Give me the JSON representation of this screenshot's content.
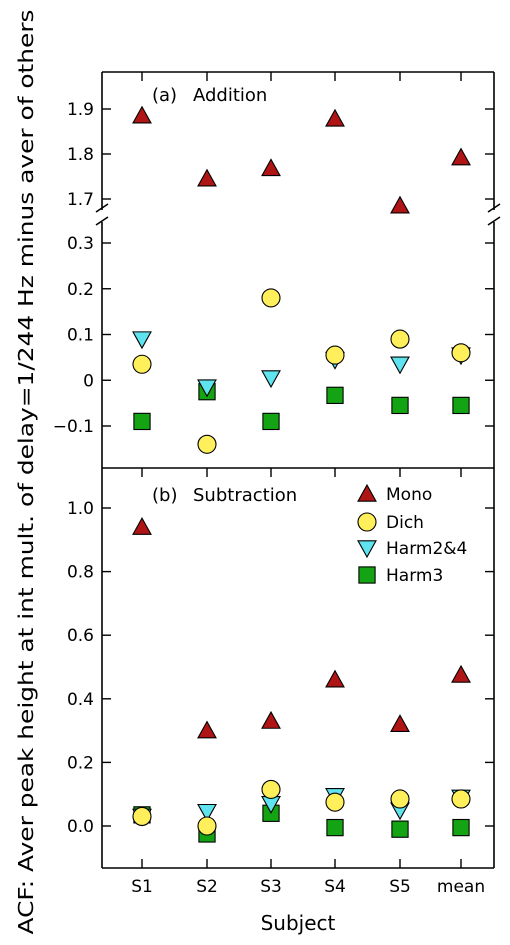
{
  "chart_data": {
    "type": "scatter",
    "categories": [
      "S1",
      "S2",
      "S3",
      "S4",
      "S5",
      "mean"
    ],
    "xlabel": "Subject",
    "ylabel": "ACF: Aver peak height at int mult. of delay=1/244 Hz minus aver of others",
    "legend": {
      "placement": "top-right of panel (b)",
      "entries": [
        "Mono",
        "Dich",
        "Harm2&4",
        "Harm3"
      ]
    },
    "panels": [
      {
        "label": "(a)",
        "title": "Addition",
        "broken_axis": true,
        "upper": {
          "ylim": [
            1.65,
            1.95
          ],
          "yticks": [
            "1.7",
            "1.8",
            "1.9"
          ]
        },
        "lower": {
          "ylim": [
            -0.18,
            0.33
          ],
          "yticks": [
            "−0.1",
            "0",
            "0.1",
            "0.2",
            "0.3"
          ]
        },
        "series": [
          {
            "name": "Mono",
            "marker": "triangle-up",
            "color": "#b01515",
            "values": [
              1.885,
              1.745,
              1.768,
              1.878,
              1.685,
              1.792
            ]
          },
          {
            "name": "Dich",
            "marker": "circle",
            "color": "#ffef5a",
            "values": [
              0.035,
              -0.14,
              0.18,
              0.055,
              0.09,
              0.06
            ]
          },
          {
            "name": "Harm2&4",
            "marker": "triangle-down",
            "color": "#5fe3ef",
            "values": [
              0.09,
              -0.015,
              0.005,
              0.045,
              0.035,
              0.055
            ]
          },
          {
            "name": "Harm3",
            "marker": "square",
            "color": "#13a313",
            "values": [
              -0.09,
              -0.025,
              -0.09,
              -0.033,
              -0.055,
              -0.055
            ]
          }
        ]
      },
      {
        "label": "(b)",
        "title": "Subtraction",
        "ylim": [
          -0.12,
          1.12
        ],
        "yticks": [
          "0.0",
          "0.2",
          "0.4",
          "0.6",
          "0.8",
          "1.0"
        ],
        "series": [
          {
            "name": "Mono",
            "marker": "triangle-up",
            "color": "#b01515",
            "values": [
              0.94,
              0.3,
              0.33,
              0.46,
              0.32,
              0.475
            ]
          },
          {
            "name": "Dich",
            "marker": "circle",
            "color": "#ffef5a",
            "values": [
              0.03,
              0.0,
              0.115,
              0.075,
              0.085,
              0.085
            ]
          },
          {
            "name": "Harm2&4",
            "marker": "triangle-down",
            "color": "#5fe3ef",
            "values": [
              0.03,
              0.045,
              0.07,
              0.095,
              0.05,
              0.09
            ]
          },
          {
            "name": "Harm3",
            "marker": "square",
            "color": "#13a313",
            "values": [
              0.035,
              -0.025,
              0.04,
              -0.005,
              -0.01,
              -0.005
            ]
          }
        ]
      }
    ]
  }
}
